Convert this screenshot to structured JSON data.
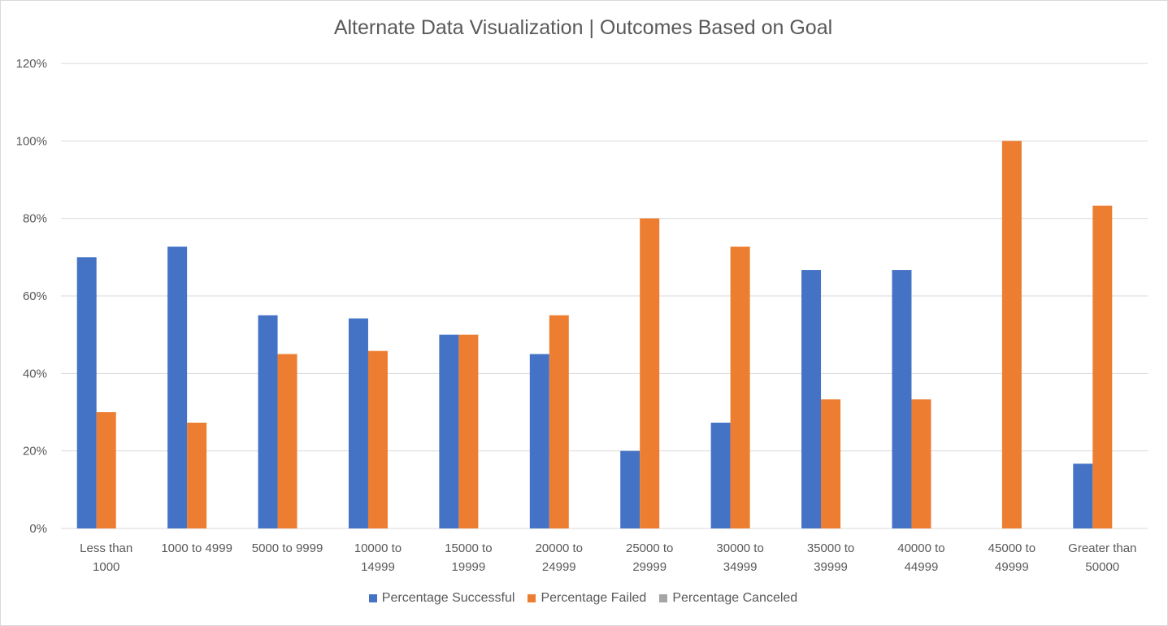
{
  "chart_data": {
    "type": "bar",
    "title": "Alternate Data Visualization | Outcomes Based on Goal",
    "xlabel": "",
    "ylabel": "",
    "ylim": [
      0,
      120
    ],
    "yticks": [
      "0%",
      "20%",
      "40%",
      "60%",
      "80%",
      "100%",
      "120%"
    ],
    "y_tick_values": [
      0,
      20,
      40,
      60,
      80,
      100,
      120
    ],
    "grid": true,
    "legend_position": "bottom",
    "categories": [
      [
        "Less than",
        "1000"
      ],
      [
        "1000 to 4999"
      ],
      [
        "5000 to 9999"
      ],
      [
        "10000 to",
        "14999"
      ],
      [
        "15000 to",
        "19999"
      ],
      [
        "20000 to",
        "24999"
      ],
      [
        "25000 to",
        "29999"
      ],
      [
        "30000 to",
        "34999"
      ],
      [
        "35000 to",
        "39999"
      ],
      [
        "40000 to",
        "44999"
      ],
      [
        "45000 to",
        "49999"
      ],
      [
        "Greater than",
        "50000"
      ]
    ],
    "series": [
      {
        "name": "Percentage Successful",
        "color": "#4472c4",
        "values": [
          70,
          72.7,
          55,
          54.2,
          50,
          45,
          20,
          27.3,
          66.7,
          66.7,
          0,
          16.7
        ]
      },
      {
        "name": "Percentage Failed",
        "color": "#ed7d31",
        "values": [
          30,
          27.3,
          45,
          45.8,
          50,
          55,
          80,
          72.7,
          33.3,
          33.3,
          100,
          83.3
        ]
      },
      {
        "name": "Percentage Canceled",
        "color": "#a5a5a5",
        "values": [
          0,
          0,
          0,
          0,
          0,
          0,
          0,
          0,
          0,
          0,
          0,
          0
        ]
      }
    ],
    "gridline_color": "#d9d9d9"
  }
}
